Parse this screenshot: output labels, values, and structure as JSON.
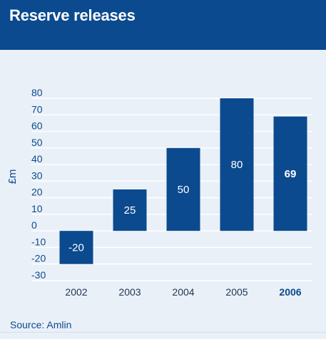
{
  "header": {
    "title": "Reserve releases"
  },
  "chart_data": {
    "type": "bar",
    "title": "Reserve releases",
    "xlabel": "",
    "ylabel": "£m",
    "categories": [
      "2002",
      "2003",
      "2004",
      "2005",
      "2006"
    ],
    "values": [
      -20,
      25,
      50,
      80,
      69
    ],
    "data_labels": [
      "-20",
      "25",
      "50",
      "80",
      "69"
    ],
    "highlight_category": "2006",
    "ylim": [
      -30,
      80
    ],
    "yticks": [
      -30,
      -20,
      -10,
      0,
      10,
      20,
      30,
      40,
      50,
      60,
      70,
      80
    ],
    "grid": true,
    "legend": "none"
  },
  "colors": {
    "bar": "#0b4a8e",
    "header_bg": "#0b4a8e",
    "background": "#eaf0f8",
    "grid": "#ffffff",
    "axis_text": "#0b4a8e",
    "data_label": "#ffffff"
  },
  "footer": {
    "source": "Source: Amlin"
  }
}
